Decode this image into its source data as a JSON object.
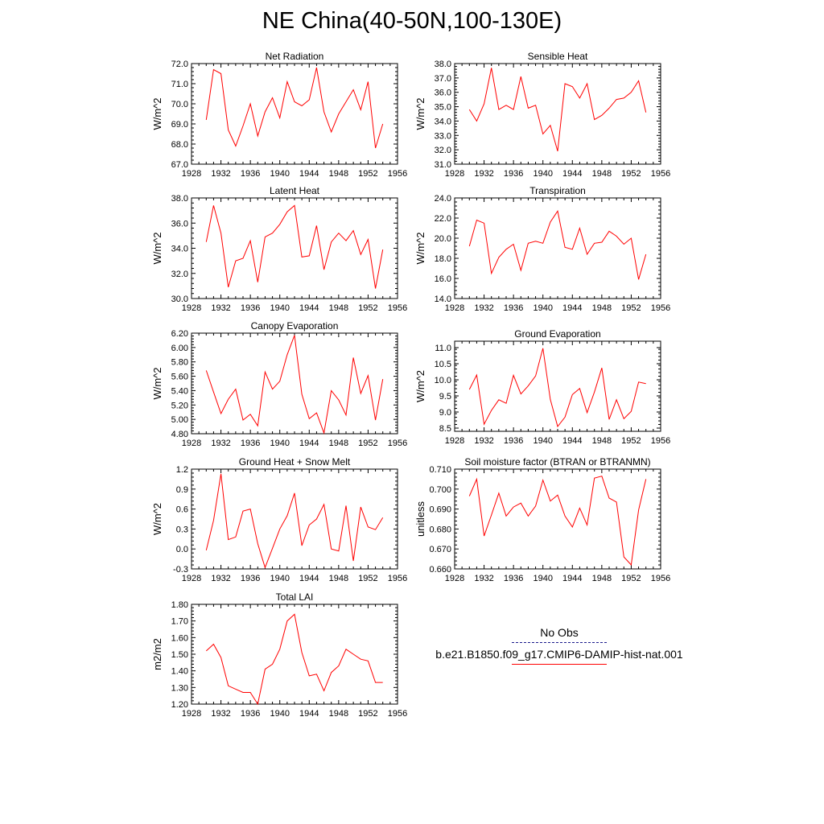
{
  "page": {
    "title": "NE China(40-50N,100-130E)"
  },
  "legend": {
    "items": [
      {
        "label": "No Obs",
        "color": "#1a1a8c",
        "style": "dashed"
      },
      {
        "label": "b.e21.B1850.f09_g17.CMIP6-DAMIP-hist-nat.001",
        "color": "#ff0000",
        "style": "solid"
      }
    ]
  },
  "chart_data": [
    {
      "type": "line",
      "title": "Net Radiation",
      "xlabel": "",
      "ylabel": "W/m^2",
      "xlim": [
        1928,
        1956
      ],
      "ylim": [
        67.0,
        72.0
      ],
      "xticks": [
        1928,
        1932,
        1936,
        1940,
        1944,
        1948,
        1952,
        1956
      ],
      "yticks": [
        "67.0",
        "68.0",
        "69.0",
        "70.0",
        "71.0",
        "72.0"
      ],
      "series": [
        {
          "color": "#ff0000",
          "x": [
            1930,
            1931,
            1932,
            1933,
            1934,
            1935,
            1936,
            1937,
            1938,
            1939,
            1940,
            1941,
            1942,
            1943,
            1944,
            1945,
            1946,
            1947,
            1948,
            1949,
            1950,
            1951,
            1952,
            1953,
            1954
          ],
          "values": [
            69.2,
            71.7,
            71.5,
            68.7,
            67.9,
            68.9,
            70.0,
            68.4,
            69.6,
            70.3,
            69.3,
            71.1,
            70.1,
            69.9,
            70.2,
            71.8,
            69.6,
            68.6,
            69.5,
            70.1,
            70.7,
            69.7,
            71.1,
            67.8,
            69.0
          ]
        }
      ]
    },
    {
      "type": "line",
      "title": "Sensible Heat",
      "xlabel": "",
      "ylabel": "W/m^2",
      "xlim": [
        1928,
        1956
      ],
      "ylim": [
        31.0,
        38.0
      ],
      "xticks": [
        1928,
        1932,
        1936,
        1940,
        1944,
        1948,
        1952,
        1956
      ],
      "yticks": [
        "31.0",
        "32.0",
        "33.0",
        "34.0",
        "35.0",
        "36.0",
        "37.0",
        "38.0"
      ],
      "series": [
        {
          "color": "#ff0000",
          "x": [
            1930,
            1931,
            1932,
            1933,
            1934,
            1935,
            1936,
            1937,
            1938,
            1939,
            1940,
            1941,
            1942,
            1943,
            1944,
            1945,
            1946,
            1947,
            1948,
            1949,
            1950,
            1951,
            1952,
            1953,
            1954
          ],
          "values": [
            34.8,
            34.0,
            35.2,
            37.7,
            34.8,
            35.1,
            34.8,
            37.1,
            34.9,
            35.1,
            33.1,
            33.7,
            31.9,
            36.6,
            36.4,
            35.6,
            36.6,
            34.1,
            34.4,
            34.9,
            35.5,
            35.6,
            36.0,
            36.8,
            34.6
          ]
        }
      ]
    },
    {
      "type": "line",
      "title": "Latent Heat",
      "xlabel": "",
      "ylabel": "W/m^2",
      "xlim": [
        1928,
        1956
      ],
      "ylim": [
        30.0,
        38.0
      ],
      "xticks": [
        1928,
        1932,
        1936,
        1940,
        1944,
        1948,
        1952,
        1956
      ],
      "yticks": [
        "30.0",
        "32.0",
        "34.0",
        "36.0",
        "38.0"
      ],
      "series": [
        {
          "color": "#ff0000",
          "x": [
            1930,
            1931,
            1932,
            1933,
            1934,
            1935,
            1936,
            1937,
            1938,
            1939,
            1940,
            1941,
            1942,
            1943,
            1944,
            1945,
            1946,
            1947,
            1948,
            1949,
            1950,
            1951,
            1952,
            1953,
            1954
          ],
          "values": [
            34.5,
            37.4,
            35.2,
            30.9,
            33.0,
            33.2,
            34.6,
            31.3,
            34.9,
            35.2,
            35.9,
            36.9,
            37.4,
            33.3,
            33.4,
            35.8,
            32.3,
            34.5,
            35.2,
            34.6,
            35.4,
            33.5,
            34.7,
            30.8,
            33.9
          ]
        }
      ]
    },
    {
      "type": "line",
      "title": "Transpiration",
      "xlabel": "",
      "ylabel": "W/m^2",
      "xlim": [
        1928,
        1956
      ],
      "ylim": [
        14.0,
        24.0
      ],
      "xticks": [
        1928,
        1932,
        1936,
        1940,
        1944,
        1948,
        1952,
        1956
      ],
      "yticks": [
        "14.0",
        "16.0",
        "18.0",
        "20.0",
        "22.0",
        "24.0"
      ],
      "series": [
        {
          "color": "#ff0000",
          "x": [
            1930,
            1931,
            1932,
            1933,
            1934,
            1935,
            1936,
            1937,
            1938,
            1939,
            1940,
            1941,
            1942,
            1943,
            1944,
            1945,
            1946,
            1947,
            1948,
            1949,
            1950,
            1951,
            1952,
            1953,
            1954
          ],
          "values": [
            19.2,
            21.8,
            21.5,
            16.5,
            18.1,
            18.9,
            19.4,
            16.8,
            19.5,
            19.7,
            19.5,
            21.6,
            22.7,
            19.1,
            18.9,
            21.0,
            18.4,
            19.5,
            19.6,
            20.7,
            20.2,
            19.4,
            20.0,
            15.9,
            18.4
          ]
        }
      ]
    },
    {
      "type": "line",
      "title": "Canopy Evaporation",
      "xlabel": "",
      "ylabel": "W/m^2",
      "xlim": [
        1928,
        1956
      ],
      "ylim": [
        4.8,
        6.2
      ],
      "xticks": [
        1928,
        1932,
        1936,
        1940,
        1944,
        1948,
        1952,
        1956
      ],
      "yticks": [
        "4.80",
        "5.00",
        "5.20",
        "5.40",
        "5.60",
        "5.80",
        "6.00",
        "6.20"
      ],
      "series": [
        {
          "color": "#ff0000",
          "x": [
            1930,
            1931,
            1932,
            1933,
            1934,
            1935,
            1936,
            1937,
            1938,
            1939,
            1940,
            1941,
            1942,
            1943,
            1944,
            1945,
            1946,
            1947,
            1948,
            1949,
            1950,
            1951,
            1952,
            1953,
            1954
          ],
          "values": [
            5.68,
            5.38,
            5.08,
            5.28,
            5.42,
            4.99,
            5.07,
            4.91,
            5.66,
            5.42,
            5.53,
            5.9,
            6.17,
            5.35,
            5.01,
            5.09,
            4.81,
            5.4,
            5.27,
            5.06,
            5.86,
            5.36,
            5.61,
            4.99,
            5.56
          ]
        }
      ]
    },
    {
      "type": "line",
      "title": "Ground Evaporation",
      "xlabel": "",
      "ylabel": "W/m^2",
      "xlim": [
        1928,
        1956
      ],
      "ylim": [
        8.4,
        11.2
      ],
      "xticks": [
        1928,
        1932,
        1936,
        1940,
        1944,
        1948,
        1952,
        1956
      ],
      "yticks": [
        "8.5",
        "9.0",
        "9.5",
        "10.0",
        "10.5",
        "11.0"
      ],
      "series": [
        {
          "color": "#ff0000",
          "x": [
            1930,
            1931,
            1932,
            1933,
            1934,
            1935,
            1936,
            1937,
            1938,
            1939,
            1940,
            1941,
            1942,
            1943,
            1944,
            1945,
            1946,
            1947,
            1948,
            1949,
            1950,
            1951,
            1952,
            1953,
            1954
          ],
          "values": [
            9.7,
            10.15,
            8.62,
            9.05,
            9.38,
            9.27,
            10.14,
            9.56,
            9.81,
            10.12,
            10.98,
            9.39,
            8.55,
            8.84,
            9.54,
            9.73,
            8.98,
            9.62,
            10.37,
            8.77,
            9.38,
            8.79,
            9.02,
            9.93,
            9.88
          ]
        }
      ]
    },
    {
      "type": "line",
      "title": "Ground Heat + Snow Melt",
      "xlabel": "",
      "ylabel": "W/m^2",
      "xlim": [
        1928,
        1956
      ],
      "ylim": [
        -0.3,
        1.2
      ],
      "xticks": [
        1928,
        1932,
        1936,
        1940,
        1944,
        1948,
        1952,
        1956
      ],
      "yticks": [
        "-0.3",
        "0.0",
        "0.3",
        "0.6",
        "0.9",
        "1.2"
      ],
      "series": [
        {
          "color": "#ff0000",
          "x": [
            1930,
            1931,
            1932,
            1933,
            1934,
            1935,
            1936,
            1937,
            1938,
            1939,
            1940,
            1941,
            1942,
            1943,
            1944,
            1945,
            1946,
            1947,
            1948,
            1949,
            1950,
            1951,
            1952,
            1953,
            1954
          ],
          "values": [
            -0.02,
            0.43,
            1.13,
            0.14,
            0.18,
            0.57,
            0.6,
            0.08,
            -0.28,
            0.01,
            0.3,
            0.5,
            0.84,
            0.05,
            0.36,
            0.45,
            0.67,
            0.0,
            -0.03,
            0.65,
            -0.18,
            0.63,
            0.33,
            0.29,
            0.47
          ]
        }
      ]
    },
    {
      "type": "line",
      "title": "Soil moisture factor (BTRAN or BTRANMN)",
      "xlabel": "",
      "ylabel": "unitless",
      "xlim": [
        1928,
        1956
      ],
      "ylim": [
        0.66,
        0.71
      ],
      "xticks": [
        1928,
        1932,
        1936,
        1940,
        1944,
        1948,
        1952,
        1956
      ],
      "yticks": [
        "0.660",
        "0.670",
        "0.680",
        "0.690",
        "0.700",
        "0.710"
      ],
      "series": [
        {
          "color": "#ff0000",
          "x": [
            1930,
            1931,
            1932,
            1933,
            1934,
            1935,
            1936,
            1937,
            1938,
            1939,
            1940,
            1941,
            1942,
            1943,
            1944,
            1945,
            1946,
            1947,
            1948,
            1949,
            1950,
            1951,
            1952,
            1953,
            1954
          ],
          "values": [
            0.6965,
            0.705,
            0.6765,
            0.687,
            0.698,
            0.6865,
            0.691,
            0.693,
            0.6865,
            0.6915,
            0.7045,
            0.694,
            0.697,
            0.6865,
            0.681,
            0.6905,
            0.682,
            0.7055,
            0.7065,
            0.6955,
            0.6935,
            0.666,
            0.662,
            0.6895,
            0.705
          ]
        }
      ]
    },
    {
      "type": "line",
      "title": "Total LAI",
      "xlabel": "",
      "ylabel": "m2/m2",
      "xlim": [
        1928,
        1956
      ],
      "ylim": [
        1.2,
        1.8
      ],
      "xticks": [
        1928,
        1932,
        1936,
        1940,
        1944,
        1948,
        1952,
        1956
      ],
      "yticks": [
        "1.20",
        "1.30",
        "1.40",
        "1.50",
        "1.60",
        "1.70",
        "1.80"
      ],
      "series": [
        {
          "color": "#ff0000",
          "x": [
            1930,
            1931,
            1932,
            1933,
            1934,
            1935,
            1936,
            1937,
            1938,
            1939,
            1940,
            1941,
            1942,
            1943,
            1944,
            1945,
            1946,
            1947,
            1948,
            1949,
            1950,
            1951,
            1952,
            1953,
            1954
          ],
          "values": [
            1.52,
            1.56,
            1.48,
            1.31,
            1.29,
            1.27,
            1.27,
            1.2,
            1.41,
            1.44,
            1.53,
            1.7,
            1.74,
            1.51,
            1.37,
            1.38,
            1.28,
            1.39,
            1.43,
            1.53,
            1.5,
            1.47,
            1.46,
            1.33,
            1.33
          ]
        }
      ]
    }
  ]
}
